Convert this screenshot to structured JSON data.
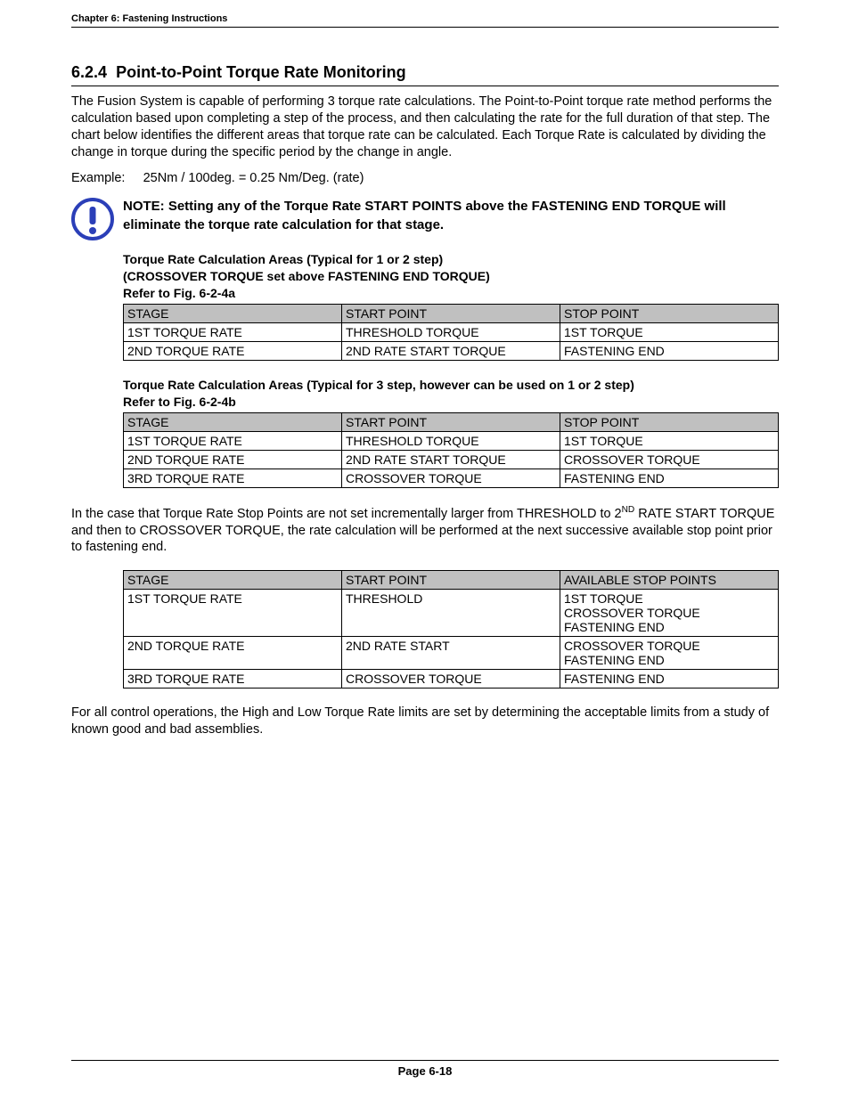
{
  "header": "Chapter 6:  Fastening Instructions",
  "section_number": "6.2.4",
  "section_title": "Point-to-Point Torque Rate Monitoring",
  "intro": "The Fusion System is capable of performing 3 torque rate calculations.  The Point-to-Point torque rate method performs the calculation based upon completing a step of the process, and then calculating the rate for the full duration of that step.  The chart below identifies the different areas that torque rate can be calculated.  Each Torque Rate is calculated by dividing the change in torque during the specific period by the change in angle.",
  "example_label": "Example:",
  "example_value": "25Nm / 100deg. = 0.25 Nm/Deg. (rate)",
  "note": "NOTE: Setting any of the Torque Rate START POINTS above the FASTENING END TORQUE will eliminate the torque rate calculation for that stage.",
  "table1": {
    "caption_line1": "Torque Rate Calculation Areas (Typical for 1 or 2 step)",
    "caption_line2": "(CROSSOVER TORQUE set above FASTENING END TORQUE)",
    "caption_line3": "Refer to Fig. 6-2-4a",
    "headers": [
      "STAGE",
      "START POINT",
      "STOP POINT"
    ],
    "rows": [
      [
        "1ST TORQUE RATE",
        "THRESHOLD TORQUE",
        "1ST TORQUE"
      ],
      [
        "2ND TORQUE RATE",
        "2ND RATE START TORQUE",
        "FASTENING END"
      ]
    ]
  },
  "table2": {
    "caption_line1": "Torque Rate Calculation Areas (Typical for 3 step, however can be used on 1 or 2 step)",
    "caption_line2": "Refer to Fig. 6-2-4b",
    "headers": [
      "STAGE",
      "START POINT",
      "STOP POINT"
    ],
    "rows": [
      [
        "1ST TORQUE RATE",
        "THRESHOLD TORQUE",
        "1ST TORQUE"
      ],
      [
        "2ND TORQUE RATE",
        "2ND RATE START TORQUE",
        "CROSSOVER TORQUE"
      ],
      [
        "3RD TORQUE RATE",
        "CROSSOVER TORQUE",
        "FASTENING END"
      ]
    ]
  },
  "mid_para_prefix": "In the case that Torque Rate Stop Points are not set incrementally larger from THRESHOLD to 2",
  "mid_para_sup": "ND",
  "mid_para_suffix": " RATE START TORQUE and then to CROSSOVER TORQUE, the rate calculation will be performed at the next successive available stop point prior to fastening end.",
  "table3": {
    "headers": [
      "STAGE",
      "START POINT",
      "AVAILABLE STOP POINTS"
    ],
    "rows": [
      [
        "1ST TORQUE RATE",
        "THRESHOLD",
        "1ST TORQUE\nCROSSOVER TORQUE\nFASTENING END"
      ],
      [
        "2ND TORQUE RATE",
        "2ND RATE START",
        "CROSSOVER TORQUE\nFASTENING END"
      ],
      [
        "3RD TORQUE RATE",
        "CROSSOVER TORQUE",
        "FASTENING END"
      ]
    ]
  },
  "closing": "For all control operations, the High and Low Torque Rate limits are set by determining the acceptable limits from a study of known good and bad assemblies.",
  "footer": "Page 6-18",
  "icon_color": "#2b3fb8"
}
